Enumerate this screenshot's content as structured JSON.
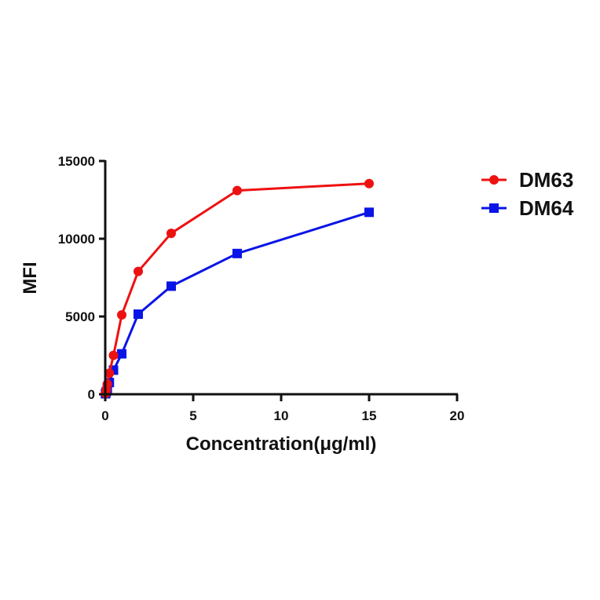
{
  "chart_data": {
    "type": "line",
    "title": "",
    "xlabel": "Concentration(μg/ml)",
    "ylabel": "MFI",
    "xlim": [
      0,
      20
    ],
    "ylim": [
      0,
      15000
    ],
    "xticks": [
      0,
      5,
      10,
      15,
      20
    ],
    "yticks": [
      0,
      5000,
      10000,
      15000
    ],
    "xtick_labels": [
      "0",
      "5",
      "10",
      "15",
      "20"
    ],
    "ytick_labels": [
      "0",
      "5000",
      "10000",
      "15000"
    ],
    "grid": false,
    "legend_position": "right-top",
    "series": [
      {
        "name": "DM63",
        "color": "#ee1111",
        "marker": "circle",
        "x": [
          0.0146,
          0.0293,
          0.0586,
          0.117,
          0.234,
          0.469,
          0.938,
          1.875,
          3.75,
          7.5,
          15
        ],
        "y": [
          50,
          120,
          300,
          650,
          1350,
          2500,
          5100,
          7900,
          10350,
          13100,
          13550
        ]
      },
      {
        "name": "DM64",
        "color": "#0a14e6",
        "marker": "square",
        "x": [
          0.0146,
          0.0293,
          0.0586,
          0.117,
          0.234,
          0.469,
          0.938,
          1.875,
          3.75,
          7.5,
          15
        ],
        "y": [
          30,
          70,
          170,
          380,
          750,
          1550,
          2600,
          5150,
          6950,
          9050,
          11700
        ]
      }
    ]
  }
}
